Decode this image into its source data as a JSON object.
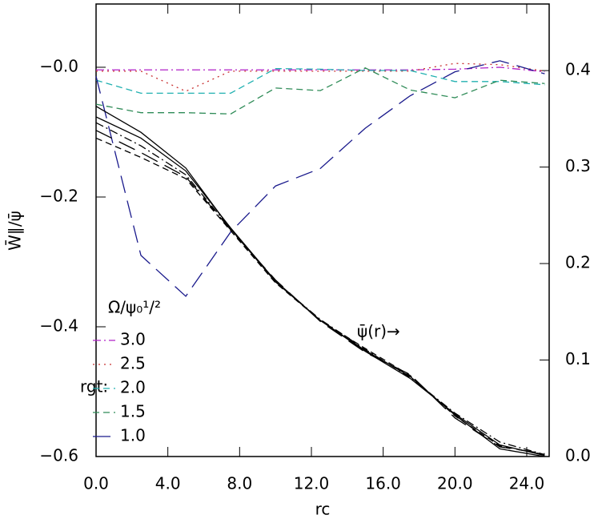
{
  "chart_data": {
    "type": "line",
    "x_label": "rc",
    "y_label": "W̄∥/ψ̄",
    "x": [
      0,
      2.5,
      5,
      7.5,
      10,
      12.5,
      15,
      17.5,
      20,
      22.5,
      25
    ],
    "xlim": [
      0,
      25.25
    ],
    "xticks": [
      {
        "value": 0,
        "label": "0.0"
      },
      {
        "value": 4,
        "label": "4.0"
      },
      {
        "value": 8,
        "label": "8.0"
      },
      {
        "value": 12,
        "label": "12.0"
      },
      {
        "value": 16,
        "label": "16.0"
      },
      {
        "value": 20,
        "label": "20.0"
      },
      {
        "value": 24,
        "label": "24.0"
      }
    ],
    "ylim": [
      -0.6,
      0.0975
    ],
    "yticks": [
      {
        "value": 0,
        "label": "−0.0"
      },
      {
        "value": -0.2,
        "label": "−0.2"
      },
      {
        "value": -0.4,
        "label": "−0.4"
      },
      {
        "value": -0.6,
        "label": "−0.6"
      }
    ],
    "y2lim": [
      0,
      0.469
    ],
    "y2ticks": [
      {
        "value": 0,
        "label": "0.0"
      },
      {
        "value": 0.1,
        "label": "0.1"
      },
      {
        "value": 0.2,
        "label": "0.2"
      },
      {
        "value": 0.3,
        "label": "0.3"
      },
      {
        "value": 0.4,
        "label": "0.4"
      }
    ],
    "legend_title": "Ω/ψ₀¹/²",
    "legend_label": "rgt:",
    "annotation": "ψ̄(r)→",
    "series": [
      {
        "name": "3.0",
        "color": "#b020c8",
        "line_style": "dashdot",
        "values": [
          -0.004,
          -0.004,
          -0.004,
          -0.004,
          -0.004,
          -0.004,
          -0.004,
          -0.004,
          -0.003,
          0.0,
          -0.007
        ]
      },
      {
        "name": "2.5",
        "color": "#c83030",
        "line_style": "dotted",
        "values": [
          -0.006,
          -0.006,
          -0.037,
          -0.006,
          -0.006,
          -0.006,
          -0.006,
          -0.006,
          0.006,
          0.004,
          -0.006
        ]
      },
      {
        "name": "2.0",
        "color": "#20b0b0",
        "line_style": "dashed",
        "values": [
          -0.02,
          -0.04,
          -0.04,
          -0.04,
          -0.002,
          -0.003,
          -0.005,
          -0.005,
          -0.022,
          -0.022,
          -0.027
        ]
      },
      {
        "name": "1.5",
        "color": "#2e8b57",
        "line_style": "dashed",
        "values": [
          -0.057,
          -0.07,
          -0.07,
          -0.072,
          -0.032,
          -0.036,
          -0.001,
          -0.035,
          -0.047,
          -0.02,
          -0.025
        ]
      },
      {
        "name": "1.0",
        "color": "#1a1a8c",
        "line_style": "longdash",
        "values": [
          -0.014,
          -0.29,
          -0.353,
          -0.254,
          -0.183,
          -0.156,
          -0.094,
          -0.044,
          -0.007,
          0.01,
          -0.01
        ]
      },
      {
        "color": "#000000",
        "axis": "y2",
        "line_style": "solid",
        "values": [
          0.363,
          0.336,
          0.299,
          0.236,
          0.181,
          0.141,
          0.11,
          0.083,
          0.043,
          0.008,
          0.0
        ]
      },
      {
        "color": "#000000",
        "axis": "y2",
        "line_style": "solid",
        "values": [
          0.352,
          0.33,
          0.296,
          0.237,
          0.182,
          0.141,
          0.109,
          0.081,
          0.044,
          0.012,
          0.001
        ]
      },
      {
        "color": "#000000",
        "axis": "y2",
        "line_style": "dashdot",
        "values": [
          0.346,
          0.322,
          0.292,
          0.236,
          0.181,
          0.142,
          0.111,
          0.082,
          0.045,
          0.015,
          0.002
        ]
      },
      {
        "color": "#000000",
        "axis": "y2",
        "line_style": "longdash",
        "values": [
          0.338,
          0.315,
          0.29,
          0.235,
          0.183,
          0.14,
          0.108,
          0.085,
          0.04,
          0.01,
          0.003
        ]
      },
      {
        "color": "#000000",
        "axis": "y2",
        "line_style": "dashed",
        "values": [
          0.33,
          0.31,
          0.288,
          0.234,
          0.18,
          0.141,
          0.112,
          0.084,
          0.042,
          0.011,
          0.002
        ]
      }
    ]
  }
}
